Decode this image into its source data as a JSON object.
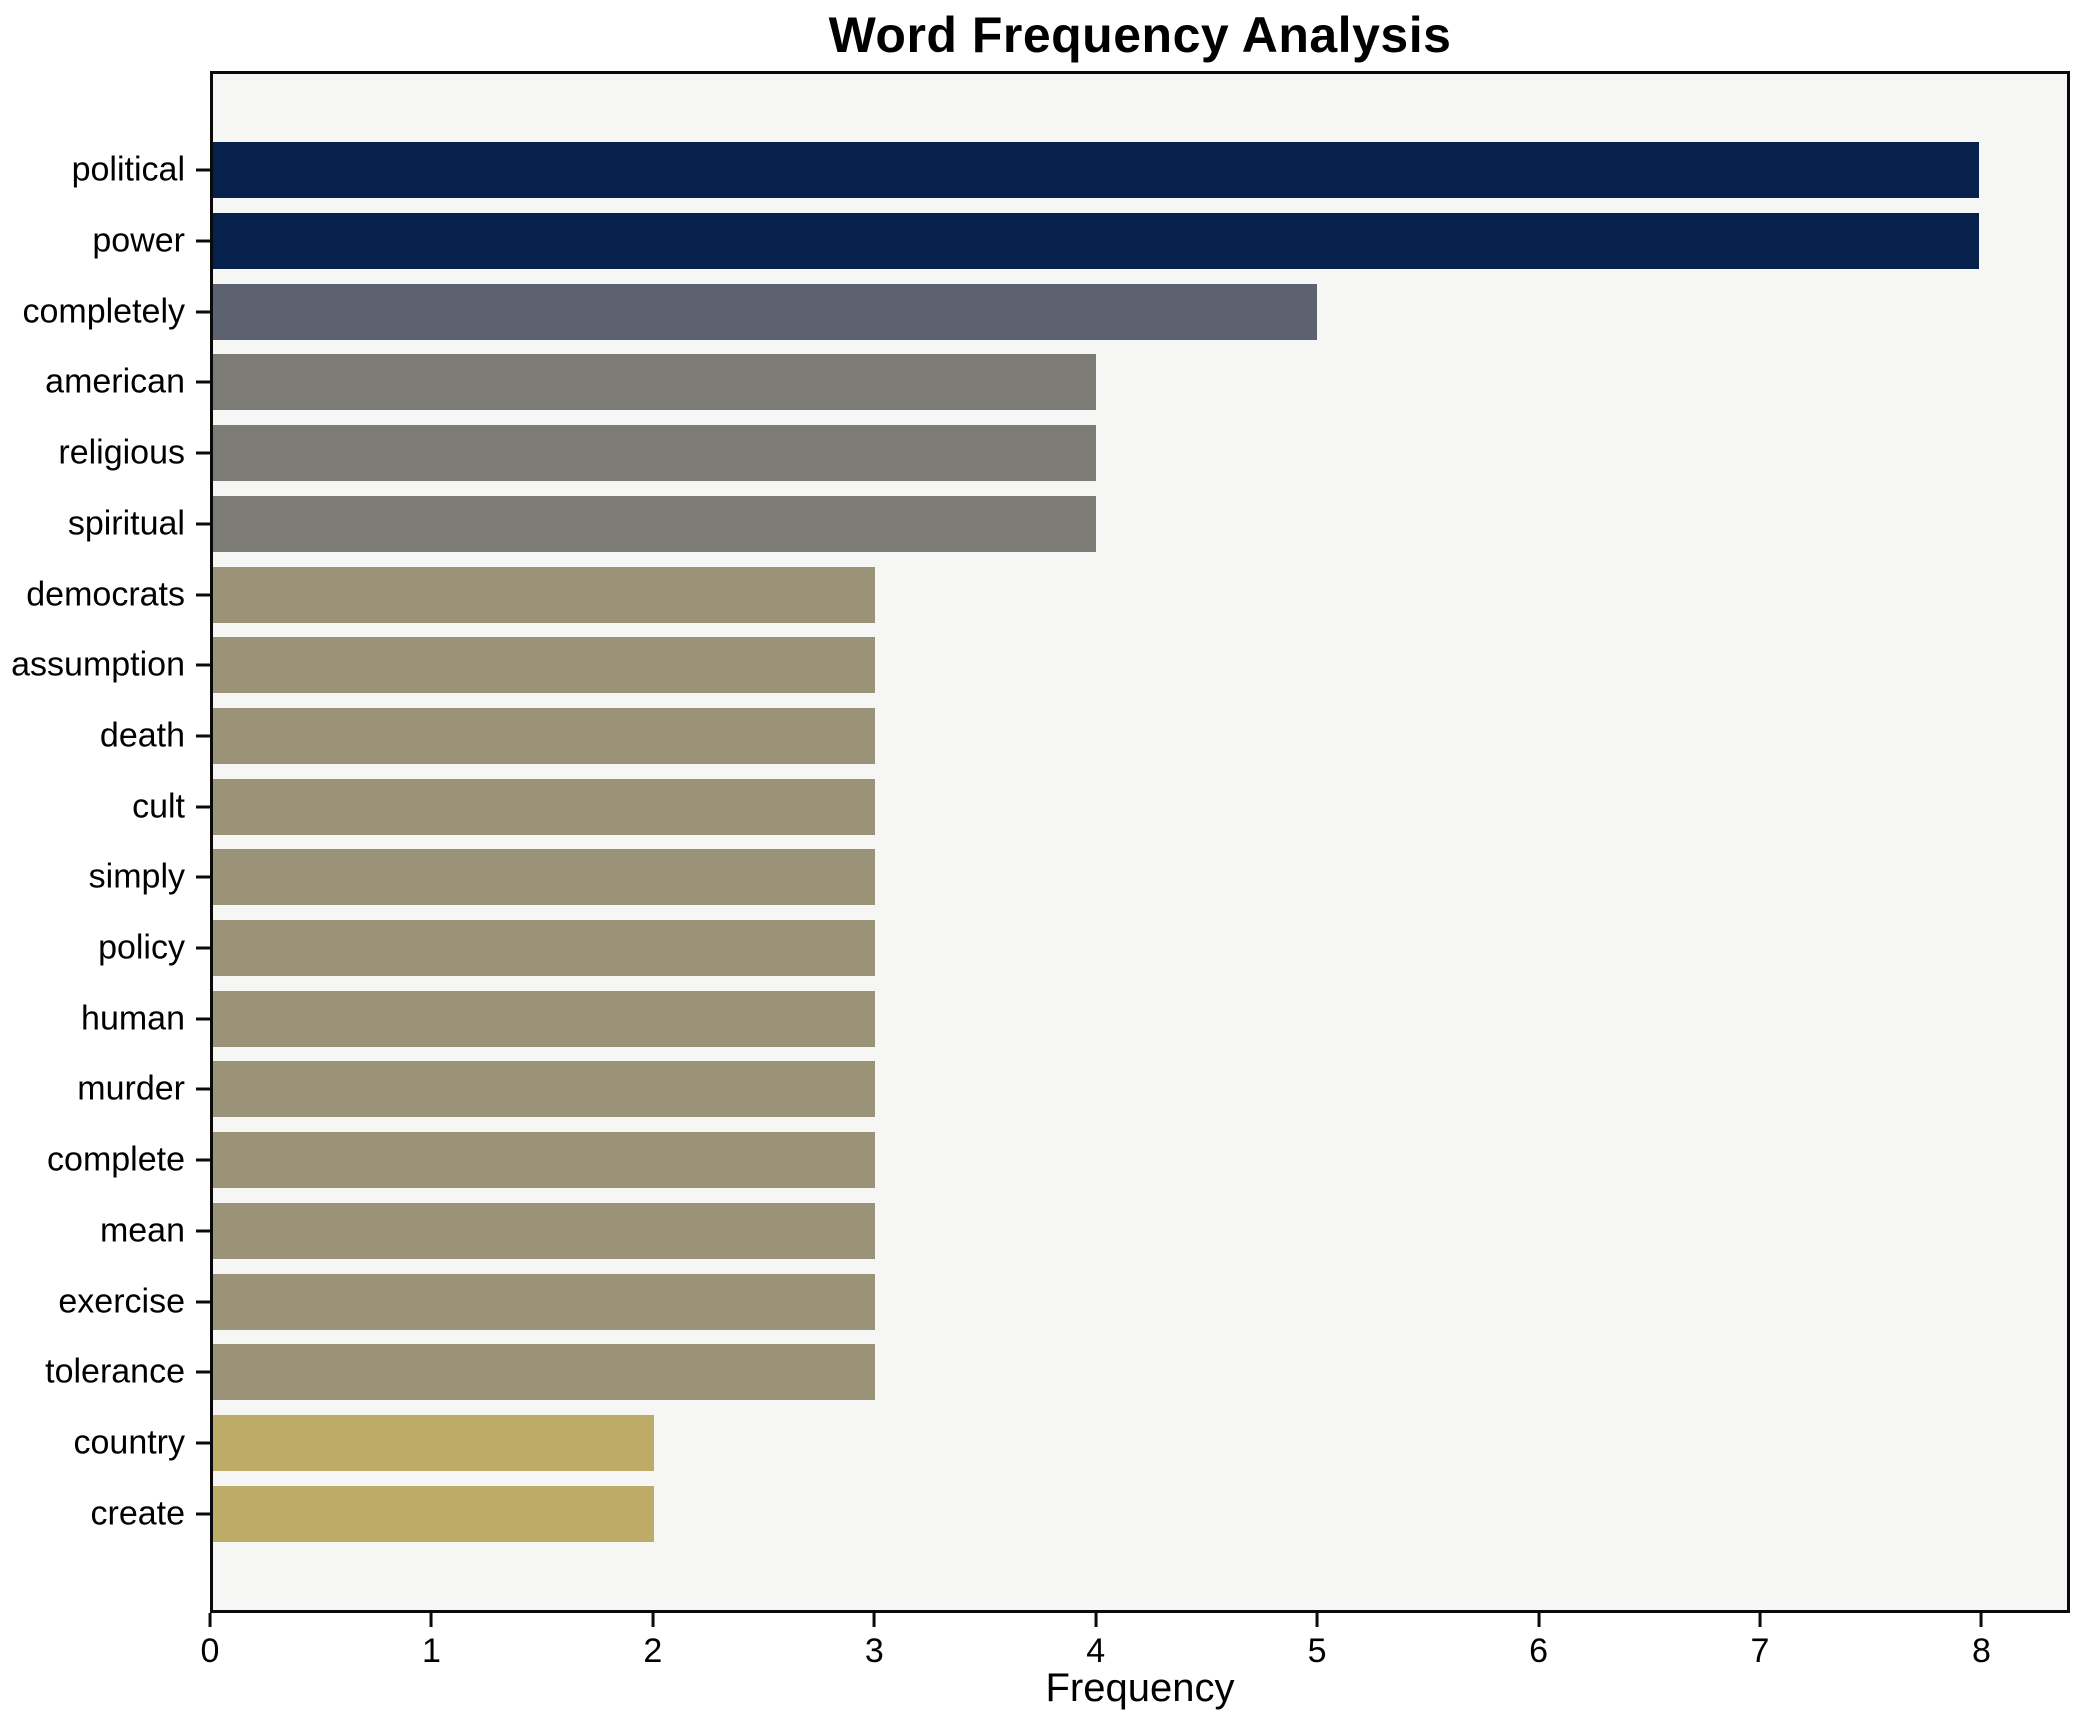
{
  "chart_data": {
    "type": "bar",
    "orientation": "horizontal",
    "title": "Word Frequency Analysis",
    "xlabel": "Frequency",
    "ylabel": "",
    "categories": [
      "political",
      "power",
      "completely",
      "american",
      "religious",
      "spiritual",
      "democrats",
      "assumption",
      "death",
      "cult",
      "simply",
      "policy",
      "human",
      "murder",
      "complete",
      "mean",
      "exercise",
      "tolerance",
      "country",
      "create"
    ],
    "values": [
      8,
      8,
      5,
      4,
      4,
      4,
      3,
      3,
      3,
      3,
      3,
      3,
      3,
      3,
      3,
      3,
      3,
      3,
      2,
      2
    ],
    "xticks": [
      0,
      1,
      2,
      3,
      4,
      5,
      6,
      7,
      8
    ],
    "xlim": [
      0,
      8.4
    ],
    "grid": false,
    "legend": false,
    "color_by_value": {
      "8": "#06224c",
      "5": "#5d6270",
      "4": "#7d7b75",
      "3": "#9b9377",
      "2": "#bdac68"
    },
    "plot_background": "#f6f6f4",
    "figure_background": "#ffffff",
    "spine_color": "#0a0a0a"
  }
}
